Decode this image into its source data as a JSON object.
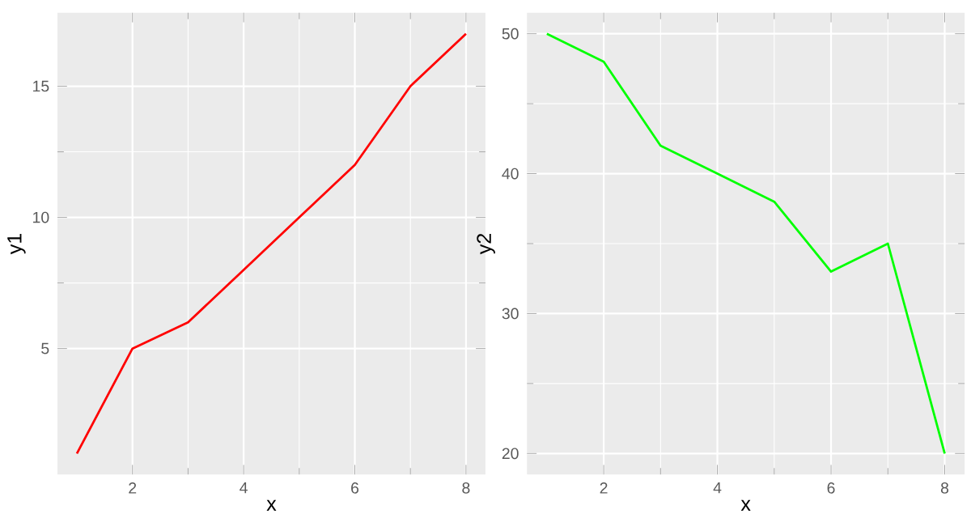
{
  "chart_data": [
    {
      "type": "line",
      "x": [
        1,
        2,
        3,
        4,
        5,
        6,
        7,
        8
      ],
      "xlabel": "x",
      "ylabel": "y1",
      "xlim": [
        0.65,
        8.35
      ],
      "ylim": [
        0.2,
        17.8
      ],
      "xticks": [
        2,
        4,
        6,
        8
      ],
      "yticks": [
        5,
        10,
        15
      ],
      "grid": true,
      "series": [
        {
          "color": "#ff0000",
          "values": [
            1,
            5,
            6,
            8,
            10,
            12,
            15,
            17
          ]
        }
      ]
    },
    {
      "type": "line",
      "x": [
        1,
        2,
        3,
        4,
        5,
        6,
        7,
        8
      ],
      "xlabel": "x",
      "ylabel": "y2",
      "xlim": [
        0.65,
        8.35
      ],
      "ylim": [
        18.5,
        51.5
      ],
      "xticks": [
        2,
        4,
        6,
        8
      ],
      "yticks": [
        20,
        30,
        40,
        50
      ],
      "grid": true,
      "series": [
        {
          "color": "#00ff00",
          "values": [
            50,
            48,
            42,
            40,
            38,
            33,
            35,
            20
          ]
        }
      ]
    }
  ]
}
